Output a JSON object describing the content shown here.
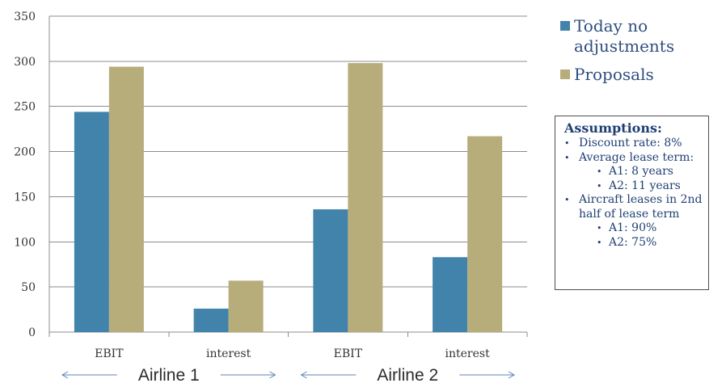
{
  "chart_data": {
    "type": "bar",
    "categories": [
      "EBIT",
      "interest",
      "EBIT",
      "interest"
    ],
    "series": [
      {
        "name": "Today no adjustments",
        "color": "#4183aa",
        "values": [
          244,
          26,
          136,
          83
        ]
      },
      {
        "name": "Proposals",
        "color": "#b6ad7b",
        "values": [
          294,
          57,
          298,
          217
        ]
      }
    ],
    "ylim": [
      0,
      350
    ],
    "yticks": [
      0,
      50,
      100,
      150,
      200,
      250,
      300,
      350
    ],
    "grid": true,
    "legend_position": "right",
    "groups": [
      {
        "label": "Airline 1",
        "categories": [
          0,
          1
        ]
      },
      {
        "label": "Airline 2",
        "categories": [
          2,
          3
        ]
      }
    ]
  },
  "legend": {
    "items": [
      {
        "label": "Today no adjustments",
        "color": "#4183aa"
      },
      {
        "label": "Proposals",
        "color": "#b6ad7b"
      }
    ]
  },
  "assumptions": {
    "title": "Assumptions:",
    "items": [
      {
        "text": "Discount rate: 8%",
        "sub": []
      },
      {
        "text": "Average lease term:",
        "sub": [
          "A1:   8 years",
          "A2: 11 years"
        ]
      },
      {
        "text": "Aircraft leases in 2nd half of lease term",
        "sub": [
          "A1: 90%",
          "A2: 75%"
        ]
      }
    ]
  }
}
